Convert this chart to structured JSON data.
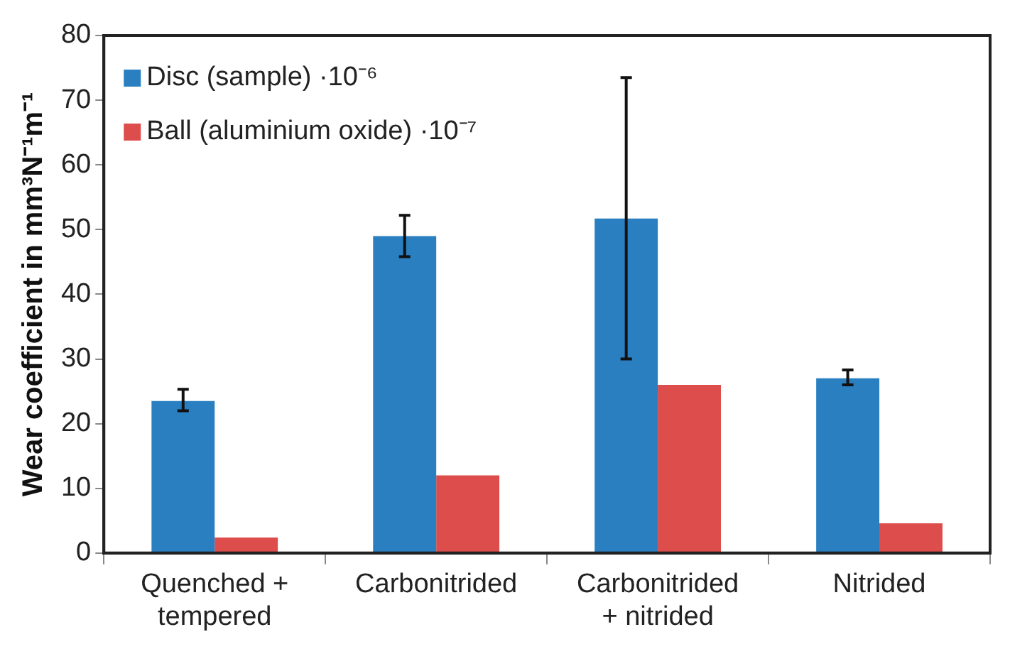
{
  "chart_data": {
    "type": "bar",
    "ylabel": "Wear coefficient in mm³N⁻¹m⁻¹",
    "categories": [
      "Quenched + tempered",
      "Carbonitrided",
      "Carbonitrided + nitrided",
      "Nitrided"
    ],
    "series": [
      {
        "name": "Disc (sample) ·10⁻⁶",
        "color": "#2a7fc0",
        "values": [
          23.5,
          49,
          51.7,
          27
        ],
        "errors": [
          [
            22,
            25.3
          ],
          [
            45.8,
            52.2
          ],
          [
            30,
            73.5
          ],
          [
            26,
            28.3
          ]
        ]
      },
      {
        "name": "Ball (aluminium oxide) ·10⁻⁷",
        "color": "#dc4d4b",
        "values": [
          2.4,
          12,
          26,
          4.6
        ]
      }
    ],
    "ylim": [
      0,
      80
    ],
    "yticks": [
      0,
      10,
      20,
      30,
      40,
      50,
      60,
      70,
      80
    ],
    "grid": false,
    "legend": "top left"
  }
}
